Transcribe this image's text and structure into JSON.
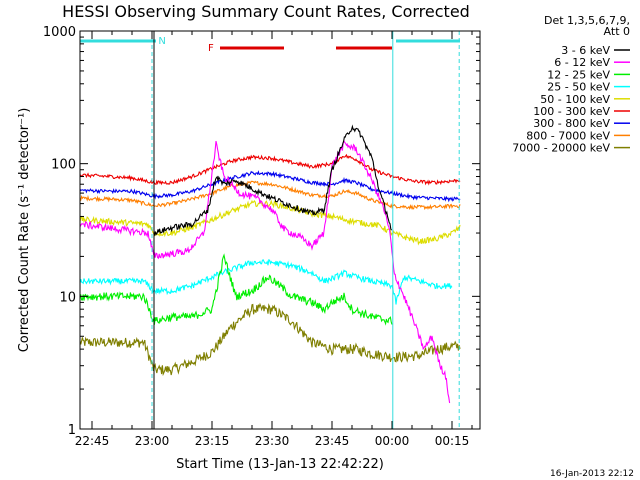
{
  "chart_data": {
    "type": "line",
    "title": "HESSI Observing Summary Count Rates, Corrected",
    "xlabel": "Start Time (13-Jan-13 22:42:22)",
    "ylabel": "Corrected Count Rate (s⁻¹ detector⁻¹)",
    "y_scale": "log",
    "ylim": [
      1,
      1000
    ],
    "xlim_minutes": [
      -3,
      97
    ],
    "x_ticks": [
      {
        "label": "22:45",
        "m": 0
      },
      {
        "label": "23:00",
        "m": 15
      },
      {
        "label": "23:15",
        "m": 30
      },
      {
        "label": "23:30",
        "m": 45
      },
      {
        "label": "23:45",
        "m": 60
      },
      {
        "label": "00:00",
        "m": 75
      },
      {
        "label": "00:15",
        "m": 90
      }
    ],
    "y_ticks": [
      {
        "label": "1",
        "v": 1
      },
      {
        "label": "10",
        "v": 10
      },
      {
        "label": "100",
        "v": 100
      },
      {
        "label": "1000",
        "v": 1000
      }
    ],
    "legend_header": [
      "Det 1,3,5,6,7,9,",
      "Att 0"
    ],
    "legend_position": "right",
    "flags": [
      {
        "label": "N",
        "color": "#33dddd",
        "spans": [
          [
            -3,
            16
          ],
          [
            76,
            92
          ]
        ]
      },
      {
        "label": "F",
        "color": "#dd0000",
        "spans": [
          [
            32,
            48
          ],
          [
            61,
            75
          ]
        ]
      }
    ],
    "markers": {
      "solid": [
        {
          "m": 15.5,
          "color": "#000000"
        },
        {
          "m": 75.2,
          "color": "#33dddd"
        }
      ],
      "dashed": [
        {
          "m": 15.0,
          "color": "#33dddd"
        },
        {
          "m": 91.8,
          "color": "#33dddd"
        }
      ]
    },
    "series": [
      {
        "name": "3 - 6 keV",
        "color": "#000000",
        "noise": 0.05,
        "points": [
          [
            15.5,
            30
          ],
          [
            20,
            33
          ],
          [
            25,
            35
          ],
          [
            29,
            45
          ],
          [
            31,
            80
          ],
          [
            33,
            70
          ],
          [
            36,
            75
          ],
          [
            40,
            65
          ],
          [
            45,
            55
          ],
          [
            50,
            48
          ],
          [
            55,
            42
          ],
          [
            58,
            45
          ],
          [
            60,
            90
          ],
          [
            63,
            150
          ],
          [
            65,
            190
          ],
          [
            67,
            170
          ],
          [
            70,
            110
          ],
          [
            72,
            60
          ],
          [
            74,
            40
          ],
          [
            75,
            30
          ]
        ]
      },
      {
        "name": "6 - 12 keV",
        "color": "#ff00ff",
        "noise": 0.06,
        "points": [
          [
            -3,
            35
          ],
          [
            14,
            30
          ],
          [
            15.5,
            20
          ],
          [
            20,
            21
          ],
          [
            24,
            22
          ],
          [
            28,
            30
          ],
          [
            31,
            140
          ],
          [
            33,
            80
          ],
          [
            37,
            60
          ],
          [
            41,
            55
          ],
          [
            45,
            45
          ],
          [
            48,
            32
          ],
          [
            52,
            28
          ],
          [
            55,
            24
          ],
          [
            58,
            30
          ],
          [
            60,
            95
          ],
          [
            63,
            140
          ],
          [
            66,
            130
          ],
          [
            70,
            75
          ],
          [
            73,
            45
          ],
          [
            74.5,
            30
          ],
          [
            75.5,
            15
          ],
          [
            78,
            10
          ],
          [
            80,
            7
          ],
          [
            83,
            4
          ],
          [
            85,
            5
          ],
          [
            87,
            3
          ],
          [
            88.5,
            2.5
          ],
          [
            89.5,
            1.5
          ]
        ]
      },
      {
        "name": "12 - 25 keV",
        "color": "#00ee00",
        "noise": 0.07,
        "points": [
          [
            -3,
            10
          ],
          [
            13,
            10
          ],
          [
            15.5,
            6.5
          ],
          [
            20,
            7
          ],
          [
            25,
            7
          ],
          [
            30,
            8
          ],
          [
            33,
            20
          ],
          [
            36,
            10
          ],
          [
            40,
            11
          ],
          [
            44,
            14
          ],
          [
            47,
            12
          ],
          [
            50,
            10
          ],
          [
            55,
            9
          ],
          [
            58,
            8
          ],
          [
            60,
            9
          ],
          [
            63,
            10
          ],
          [
            65,
            8
          ],
          [
            70,
            7
          ],
          [
            75,
            6.5
          ]
        ]
      },
      {
        "name": "25 - 50 keV",
        "color": "#00ffff",
        "noise": 0.05,
        "points": [
          [
            -3,
            13
          ],
          [
            13,
            13
          ],
          [
            15.5,
            11
          ],
          [
            20,
            11
          ],
          [
            25,
            12
          ],
          [
            30,
            14
          ],
          [
            35,
            16
          ],
          [
            40,
            18
          ],
          [
            45,
            18
          ],
          [
            50,
            17
          ],
          [
            55,
            15
          ],
          [
            58,
            13
          ],
          [
            61,
            14
          ],
          [
            63,
            15
          ],
          [
            66,
            14
          ],
          [
            70,
            13
          ],
          [
            75,
            12
          ],
          [
            76,
            9
          ],
          [
            78,
            14
          ],
          [
            82,
            13
          ],
          [
            86,
            12
          ],
          [
            90,
            12
          ]
        ]
      },
      {
        "name": "50 - 100 keV",
        "color": "#dddd00",
        "noise": 0.05,
        "points": [
          [
            -3,
            38
          ],
          [
            14,
            35
          ],
          [
            15.5,
            30
          ],
          [
            20,
            30
          ],
          [
            25,
            33
          ],
          [
            30,
            38
          ],
          [
            35,
            44
          ],
          [
            40,
            50
          ],
          [
            45,
            50
          ],
          [
            50,
            46
          ],
          [
            55,
            42
          ],
          [
            60,
            40
          ],
          [
            63,
            38
          ],
          [
            67,
            36
          ],
          [
            72,
            34
          ],
          [
            75,
            30
          ],
          [
            78,
            28
          ],
          [
            82,
            26
          ],
          [
            86,
            27
          ],
          [
            90,
            30
          ],
          [
            92,
            33
          ]
        ]
      },
      {
        "name": "100 - 300 keV",
        "color": "#ee0000",
        "noise": 0.03,
        "points": [
          [
            -3,
            82
          ],
          [
            5,
            80
          ],
          [
            10,
            78
          ],
          [
            15.5,
            72
          ],
          [
            20,
            72
          ],
          [
            25,
            80
          ],
          [
            30,
            92
          ],
          [
            35,
            105
          ],
          [
            40,
            112
          ],
          [
            45,
            110
          ],
          [
            50,
            102
          ],
          [
            55,
            95
          ],
          [
            60,
            100
          ],
          [
            63,
            115
          ],
          [
            66,
            108
          ],
          [
            70,
            90
          ],
          [
            75,
            80
          ],
          [
            80,
            74
          ],
          [
            85,
            72
          ],
          [
            90,
            74
          ],
          [
            92,
            75
          ]
        ]
      },
      {
        "name": "300 - 800 keV",
        "color": "#0000ee",
        "noise": 0.03,
        "points": [
          [
            -3,
            63
          ],
          [
            5,
            62
          ],
          [
            10,
            62
          ],
          [
            15.5,
            57
          ],
          [
            20,
            58
          ],
          [
            25,
            62
          ],
          [
            30,
            70
          ],
          [
            35,
            78
          ],
          [
            40,
            85
          ],
          [
            45,
            84
          ],
          [
            50,
            78
          ],
          [
            55,
            72
          ],
          [
            60,
            70
          ],
          [
            63,
            75
          ],
          [
            66,
            72
          ],
          [
            70,
            64
          ],
          [
            75,
            60
          ],
          [
            80,
            56
          ],
          [
            85,
            55
          ],
          [
            90,
            54
          ],
          [
            92,
            55
          ]
        ]
      },
      {
        "name": "800 - 7000 keV",
        "color": "#ff7f00",
        "noise": 0.03,
        "points": [
          [
            -3,
            55
          ],
          [
            5,
            54
          ],
          [
            10,
            53
          ],
          [
            15.5,
            48
          ],
          [
            20,
            50
          ],
          [
            25,
            54
          ],
          [
            30,
            60
          ],
          [
            35,
            68
          ],
          [
            40,
            72
          ],
          [
            45,
            70
          ],
          [
            50,
            64
          ],
          [
            55,
            58
          ],
          [
            60,
            57
          ],
          [
            63,
            62
          ],
          [
            66,
            60
          ],
          [
            70,
            53
          ],
          [
            75,
            48
          ],
          [
            80,
            47
          ],
          [
            85,
            47
          ],
          [
            90,
            48
          ],
          [
            92,
            48
          ]
        ]
      },
      {
        "name": "7000 - 20000 keV",
        "color": "#7f7f00",
        "noise": 0.09,
        "points": [
          [
            -3,
            4.5
          ],
          [
            13,
            4.5
          ],
          [
            15.5,
            2.8
          ],
          [
            20,
            2.8
          ],
          [
            25,
            3.2
          ],
          [
            30,
            3.8
          ],
          [
            35,
            6
          ],
          [
            40,
            8
          ],
          [
            45,
            8
          ],
          [
            50,
            6.5
          ],
          [
            55,
            4.5
          ],
          [
            60,
            4
          ],
          [
            63,
            4
          ],
          [
            66,
            4
          ],
          [
            70,
            3.7
          ],
          [
            75,
            3.5
          ],
          [
            78,
            3.5
          ],
          [
            82,
            3.6
          ],
          [
            86,
            4
          ],
          [
            90,
            4.2
          ],
          [
            92,
            4.2
          ]
        ]
      }
    ]
  },
  "footer": {
    "timestamp": "16-Jan-2013 22:12"
  }
}
